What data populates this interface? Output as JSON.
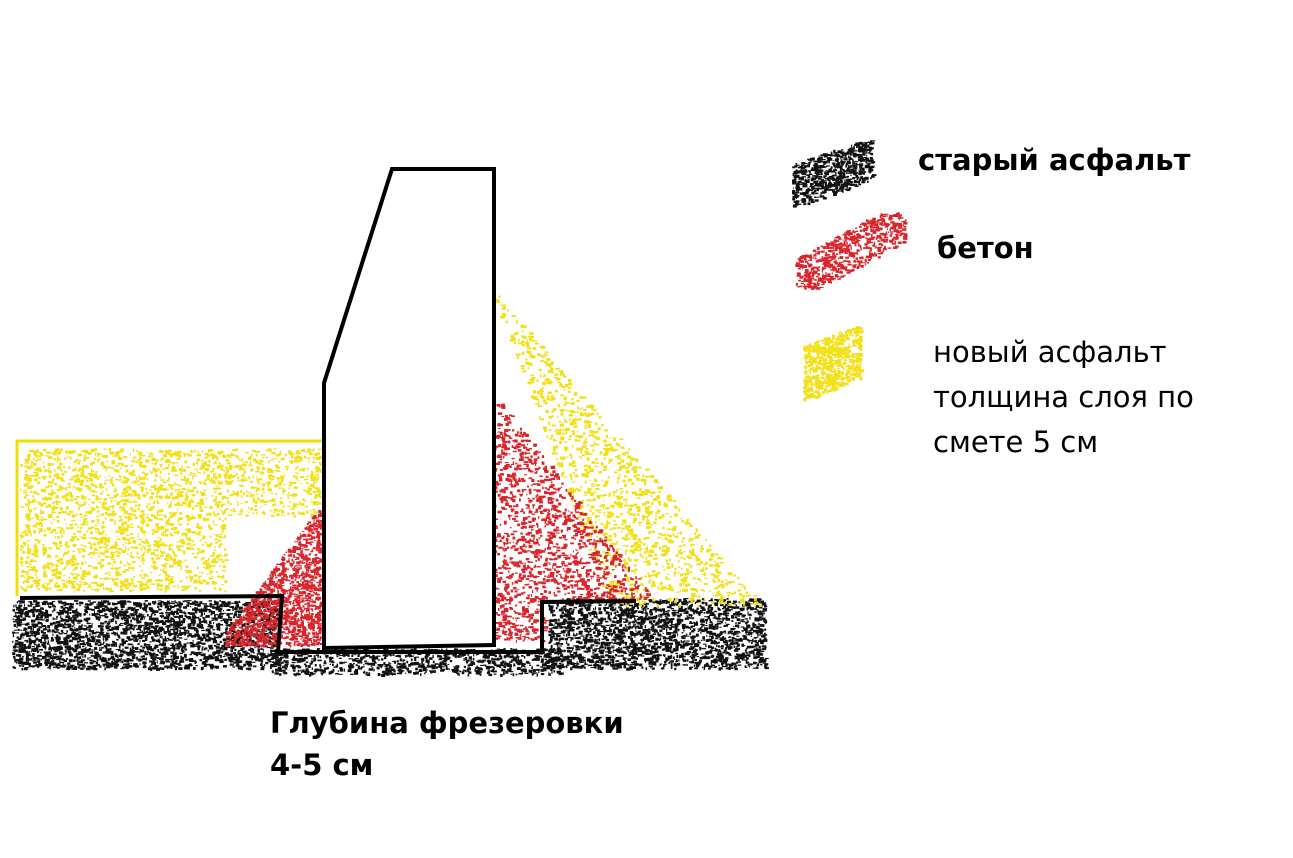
{
  "colors": {
    "old_asphalt": "#111111",
    "concrete": "#d9252b",
    "new_asphalt": "#f2e11a",
    "outline": "#000000",
    "new_asphalt_outline": "#f0e000"
  },
  "legend": {
    "old_asphalt": "старый асфальт",
    "concrete": "бетон",
    "new_asphalt_line1": "новый асфальт",
    "new_asphalt_line2": "толщина слоя по",
    "new_asphalt_line3": "смете 5 см"
  },
  "annotation": {
    "line1": "Глубина фрезеровки",
    "line2": "4-5 см"
  }
}
